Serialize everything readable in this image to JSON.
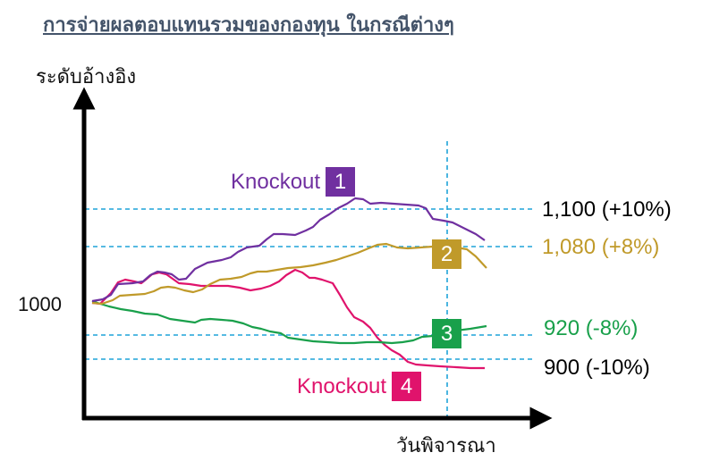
{
  "title": "การจ่ายผลตอบแทนรวมของกองทุน ในกรณีต่างๆ",
  "axis": {
    "y_label": "ระดับอ้างอิง",
    "x_label": "วันพิจารณา",
    "reference_label": "1000"
  },
  "levels": [
    {
      "label": "1,100 (+10%)",
      "color": "#111111"
    },
    {
      "label": "1,080 (+8%)",
      "color": "#c09a2a"
    },
    {
      "label": "920 (-8%)",
      "color": "#19a04b"
    },
    {
      "label": "900 (-10%)",
      "color": "#111111"
    }
  ],
  "cases": [
    {
      "number": "1",
      "knockout_label": "Knockout",
      "color": "#7030a0"
    },
    {
      "number": "2",
      "color": "#c09a2a"
    },
    {
      "number": "3",
      "color": "#19a04b"
    },
    {
      "number": "4",
      "knockout_label": "Knockout",
      "color": "#e0136c"
    }
  ],
  "colors": {
    "guide_line": "#1fa3d9",
    "axis": "#000000"
  }
}
